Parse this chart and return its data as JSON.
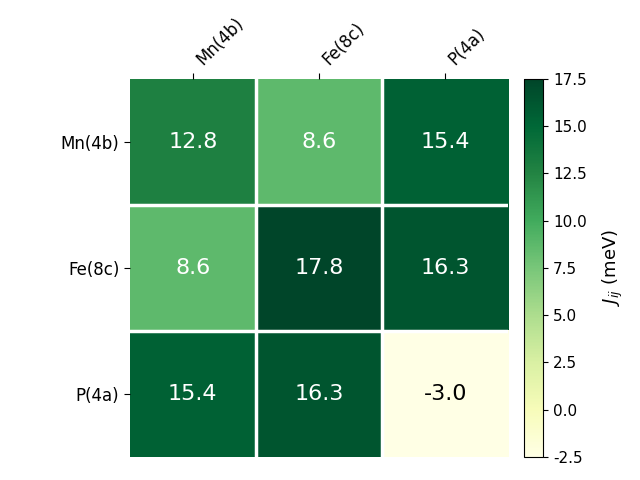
{
  "labels": [
    "Mn(4b)",
    "Fe(8c)",
    "P(4a)"
  ],
  "matrix": [
    [
      12.8,
      8.6,
      15.4
    ],
    [
      8.6,
      17.8,
      16.3
    ],
    [
      15.4,
      16.3,
      -3.0
    ]
  ],
  "vmin": -2.5,
  "vmax": 17.5,
  "cmap": "YlGn",
  "colorbar_label": "$J_{ij}$ (meV)",
  "colorbar_ticks": [
    -2.5,
    0.0,
    2.5,
    5.0,
    7.5,
    10.0,
    12.5,
    15.0,
    17.5
  ],
  "font_size_annotations": 16,
  "font_size_labels": 12,
  "font_size_colorbar": 11,
  "white_text_threshold": 5.0,
  "linewidth": 2.5
}
